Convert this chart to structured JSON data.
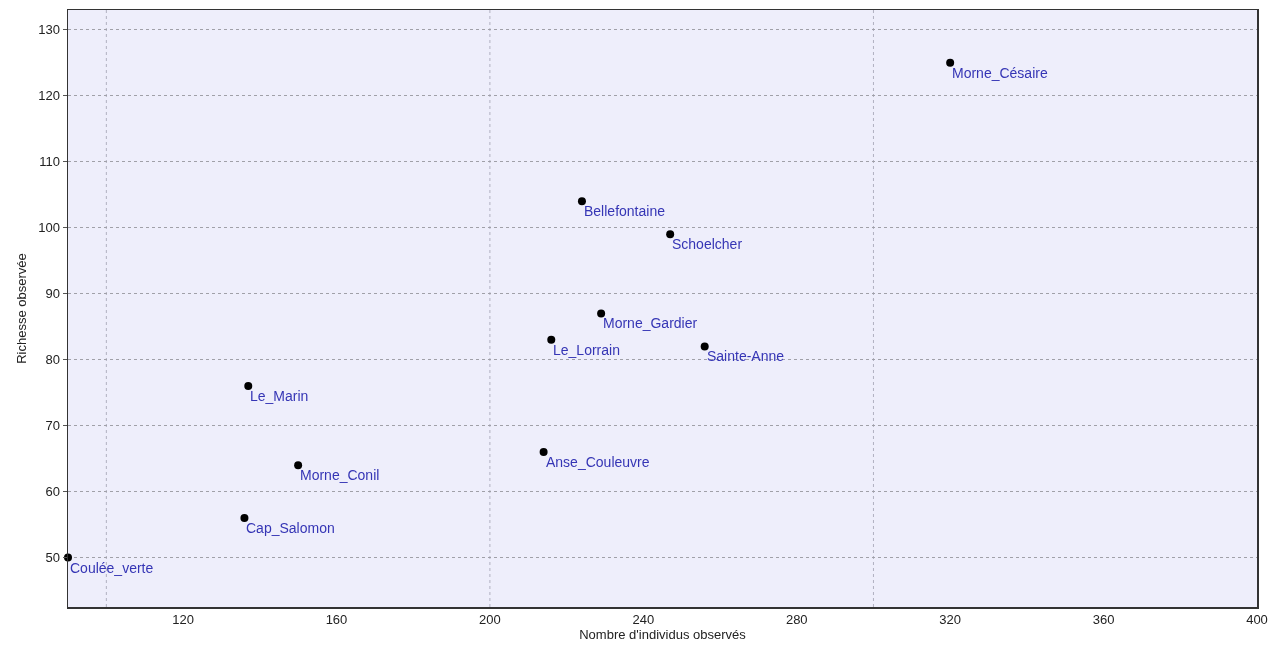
{
  "chart_data": {
    "type": "scatter",
    "xlabel": "Nombre d'individus observés",
    "ylabel": "Richesse observée",
    "x": [
      90,
      136,
      137,
      150,
      214,
      216,
      224,
      229,
      247,
      256,
      320
    ],
    "values": [
      50,
      56,
      76,
      64,
      66,
      83,
      104,
      87,
      99,
      82,
      125
    ],
    "color": "#000000",
    "marker": "circle",
    "grid": true,
    "xlim": [
      90,
      400
    ],
    "xticks": [
      {
        "value": 100,
        "label": null
      },
      120,
      160,
      {
        "value": 200,
        "label": null
      },
      200,
      240,
      280,
      {
        "value": 300,
        "label": null
      },
      320,
      360,
      400
    ],
    "ylim": [
      42.5,
      133
    ],
    "yticks": [
      50,
      60,
      70,
      80,
      90,
      100,
      110,
      120,
      130
    ],
    "annotations": [
      {
        "text": "Coulée_verte",
        "x": 90,
        "y": 50
      },
      {
        "text": "Cap_Salomon",
        "x": 136,
        "y": 56
      },
      {
        "text": "Le_Marin",
        "x": 137,
        "y": 76
      },
      {
        "text": "Morne_Conil",
        "x": 150,
        "y": 64
      },
      {
        "text": "Anse_Couleuvre",
        "x": 214,
        "y": 66
      },
      {
        "text": "Le_Lorrain",
        "x": 216,
        "y": 83
      },
      {
        "text": "Bellefontaine",
        "x": 224,
        "y": 104
      },
      {
        "text": "Morne_Gardier",
        "x": 229,
        "y": 87
      },
      {
        "text": "Schoelcher",
        "x": 247,
        "y": 99
      },
      {
        "text": "Sainte-Anne",
        "x": 256,
        "y": 82
      },
      {
        "text": "Morne_Césaire",
        "x": 320,
        "y": 125
      }
    ]
  }
}
